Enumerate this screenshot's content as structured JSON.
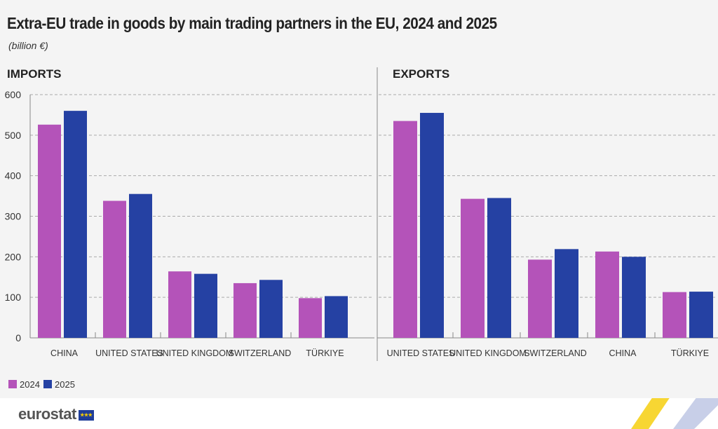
{
  "title": "Extra-EU trade in goods by main trading partners in the EU, 2024 and 2025",
  "subtitle": "(billion €)",
  "brand": "eurostat",
  "chart_data": [
    {
      "type": "bar",
      "title": "IMPORTS",
      "categories": [
        "CHINA",
        "UNITED STATES",
        "UNITED KINGDOM",
        "SWITZERLAND",
        "TÜRKIYE"
      ],
      "series": [
        {
          "name": "2024",
          "color": "#b453b9",
          "values": [
            526,
            338,
            164,
            135,
            98
          ]
        },
        {
          "name": "2025",
          "color": "#2541a3",
          "values": [
            560,
            355,
            158,
            143,
            103
          ]
        }
      ],
      "ylim": [
        0,
        600
      ],
      "yticks": [
        0,
        100,
        200,
        300,
        400,
        500,
        600
      ],
      "grid": true
    },
    {
      "type": "bar",
      "title": "EXPORTS",
      "categories": [
        "UNITED STATES",
        "UNITED KINGDOM",
        "SWITZERLAND",
        "CHINA",
        "TÜRKIYE"
      ],
      "series": [
        {
          "name": "2024",
          "color": "#b453b9",
          "values": [
            535,
            343,
            193,
            213,
            113
          ]
        },
        {
          "name": "2025",
          "color": "#2541a3",
          "values": [
            555,
            345,
            219,
            200,
            114
          ]
        }
      ],
      "ylim": [
        0,
        600
      ],
      "yticks": [
        0,
        100,
        200,
        300,
        400,
        500,
        600
      ],
      "grid": true
    }
  ],
  "legend": {
    "position": "bottom-left",
    "items": [
      "2024",
      "2025"
    ]
  }
}
